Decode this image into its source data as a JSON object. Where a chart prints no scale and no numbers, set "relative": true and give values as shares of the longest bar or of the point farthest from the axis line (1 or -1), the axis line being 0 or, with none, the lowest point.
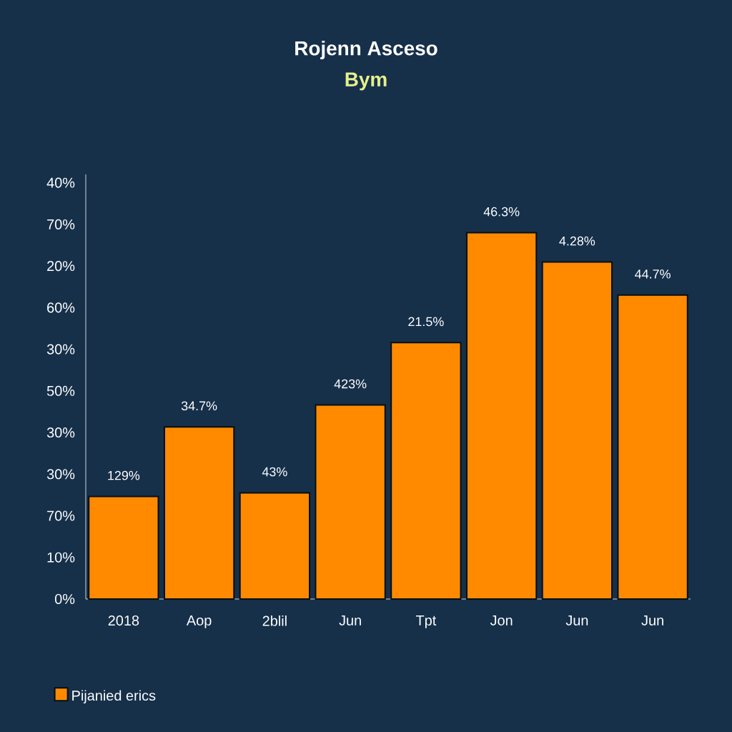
{
  "chart_data": {
    "type": "bar",
    "title": "Rojenn Asceso",
    "subtitle": "Bym",
    "relative": true,
    "categories": [
      "2018",
      "Aop",
      "2blil",
      "Jun",
      "Tpt",
      "Jon",
      "Jun",
      "Jun"
    ],
    "series": [
      {
        "name": "Pijanied erics",
        "color": "#ff8a00",
        "values": [
          0.28,
          0.47,
          0.29,
          0.53,
          0.7,
          1,
          0.92,
          0.83
        ]
      }
    ],
    "value_labels": [
      "129%",
      "34.7%",
      "43%",
      "423%",
      "21.5%",
      "46.3%",
      "4.28%",
      "44.7%"
    ],
    "annotations": [
      "0%",
      "10%",
      "70%",
      "30%",
      "30%",
      "50%",
      "30%",
      "60%",
      "20%",
      "70%",
      "40%"
    ],
    "legend": "bottom left"
  }
}
